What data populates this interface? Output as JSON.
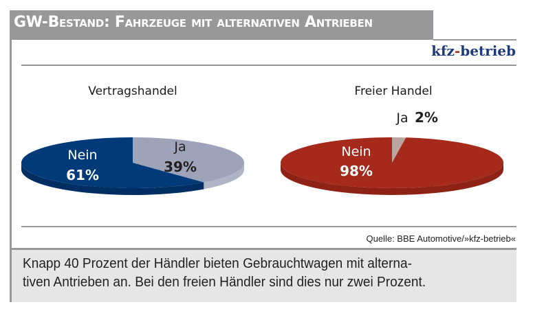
{
  "header": {
    "title": "GW-Bestand: Fahrzeuge mit alternativen Antrieben",
    "brand_main": "kfz",
    "brand_dash": "-",
    "brand_rest": "betrieb"
  },
  "source": "Quelle: BBE Automotive/»kfz-betrieb«",
  "caption": {
    "line1": "Knapp 40 Prozent der Händler bieten Gebrauchtwagen mit alterna-",
    "line2": "tiven Antrieben an. Bei den freien Händler sind dies nur zwei Prozent."
  },
  "chart_data": [
    {
      "type": "pie",
      "title": "Vertragshandel",
      "categories": [
        "Nein",
        "Ja"
      ],
      "values": [
        61,
        39
      ],
      "labels": [
        "Nein",
        "Ja"
      ],
      "value_labels": [
        "61%",
        "39%"
      ],
      "colors": [
        "#003a78",
        "#9da3b8"
      ],
      "side_colors": [
        "#002e63",
        "#b0b5c6"
      ]
    },
    {
      "type": "pie",
      "title": "Freier Handel",
      "categories": [
        "Nein",
        "Ja"
      ],
      "values": [
        98,
        2
      ],
      "labels": [
        "Nein",
        "Ja"
      ],
      "value_labels": [
        "98%",
        "2%"
      ],
      "colors": [
        "#a52a1c",
        "#bba79f"
      ],
      "side_colors": [
        "#8e2215",
        "#c9b8b0"
      ]
    }
  ]
}
